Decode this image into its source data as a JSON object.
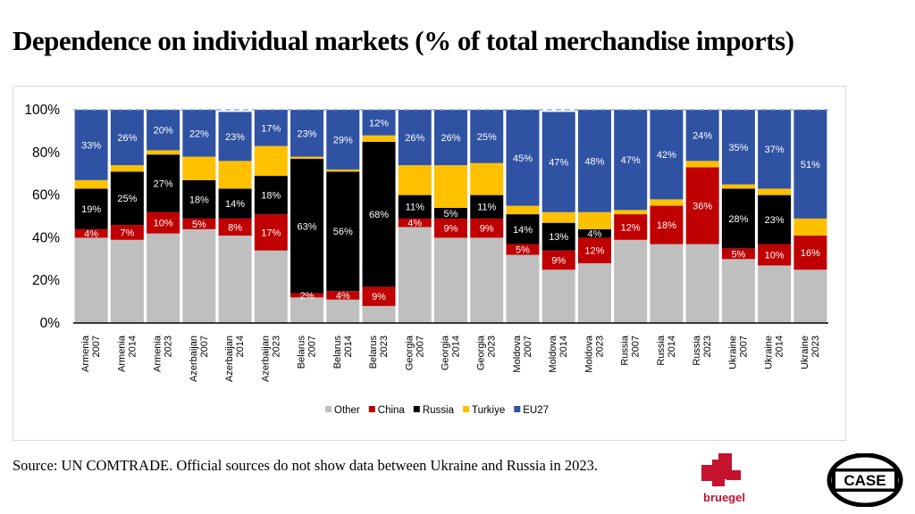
{
  "slide": {
    "title": "Dependence on individual markets (% of total merchandise imports)",
    "source": "Source: UN COMTRADE. Official sources do not show data between Ukraine and Russia in 2023."
  },
  "logos": {
    "bruegel": "bruegel",
    "case": "CASE"
  },
  "chart_data": {
    "type": "bar",
    "stacked": true,
    "categories": [
      [
        "Armenia",
        "2007"
      ],
      [
        "Armenia",
        "2014"
      ],
      [
        "Armenia",
        "2023"
      ],
      [
        "Azerbaijan",
        "2007"
      ],
      [
        "Azerbaijan",
        "2014"
      ],
      [
        "Azerbaijan",
        "2023"
      ],
      [
        "Belarus",
        "2007"
      ],
      [
        "Belarus",
        "2014"
      ],
      [
        "Belarus",
        "2023"
      ],
      [
        "Georgia",
        "2007"
      ],
      [
        "Georgia",
        "2014"
      ],
      [
        "Georgia",
        "2023"
      ],
      [
        "Moldova",
        "2007"
      ],
      [
        "Moldova",
        "2014"
      ],
      [
        "Moldova",
        "2023"
      ],
      [
        "Russia",
        "2007"
      ],
      [
        "Russia",
        "2014"
      ],
      [
        "Russia",
        "2023"
      ],
      [
        "Ukraine",
        "2007"
      ],
      [
        "Ukraine",
        "2014"
      ],
      [
        "Ukraine",
        "2023"
      ]
    ],
    "series": [
      {
        "name": "Other",
        "color": "#bfbfbf",
        "values": [
          40,
          39,
          42,
          44,
          41,
          34,
          12,
          11,
          8,
          45,
          40,
          40,
          32,
          25,
          28,
          39,
          37,
          37,
          30,
          27,
          25
        ]
      },
      {
        "name": "China",
        "color": "#c00000",
        "values": [
          4,
          7,
          10,
          5,
          8,
          17,
          2,
          4,
          9,
          4,
          9,
          9,
          5,
          9,
          12,
          12,
          18,
          36,
          5,
          10,
          16
        ]
      },
      {
        "name": "Russia",
        "color": "#000000",
        "values": [
          19,
          25,
          27,
          18,
          14,
          18,
          63,
          56,
          68,
          11,
          5,
          11,
          14,
          13,
          4,
          0,
          0,
          0,
          28,
          23,
          0
        ]
      },
      {
        "name": "Turkiye",
        "color": "#ffc000",
        "values": [
          4,
          3,
          2,
          11,
          13,
          14,
          1,
          1,
          3,
          14,
          20,
          15,
          4,
          5,
          8,
          2,
          3,
          3,
          2,
          3,
          8
        ]
      },
      {
        "name": "EU27",
        "color": "#2f52a3",
        "values": [
          33,
          26,
          20,
          22,
          23,
          17,
          23,
          29,
          12,
          26,
          26,
          25,
          45,
          47,
          48,
          47,
          42,
          24,
          35,
          37,
          51
        ]
      }
    ],
    "data_labels": {
      "China": [
        "4%",
        "7%",
        "10%",
        "5%",
        "8%",
        "17%",
        "2%",
        "4%",
        "9%",
        "4%",
        "9%",
        "9%",
        "5%",
        "9%",
        "12%",
        "12%",
        "18%",
        "36%",
        "5%",
        "10%",
        "16%"
      ],
      "Russia": [
        "19%",
        "25%",
        "27%",
        "18%",
        "14%",
        "18%",
        "63%",
        "56%",
        "68%",
        "11%",
        "5%",
        "11%",
        "14%",
        "13%",
        "4%",
        "",
        "",
        "",
        "28%",
        "23%",
        ""
      ],
      "EU27": [
        "33%",
        "26%",
        "20%",
        "22%",
        "23%",
        "17%",
        "23%",
        "29%",
        "12%",
        "26%",
        "26%",
        "25%",
        "45%",
        "47%",
        "48%",
        "47%",
        "42%",
        "24%",
        "35%",
        "37%",
        "51%"
      ]
    },
    "y_ticks": [
      "0%",
      "20%",
      "40%",
      "60%",
      "80%",
      "100%"
    ],
    "ylim": [
      0,
      100
    ],
    "legend_position": "bottom",
    "reference_line": {
      "value": 100,
      "style": "dashed"
    }
  }
}
